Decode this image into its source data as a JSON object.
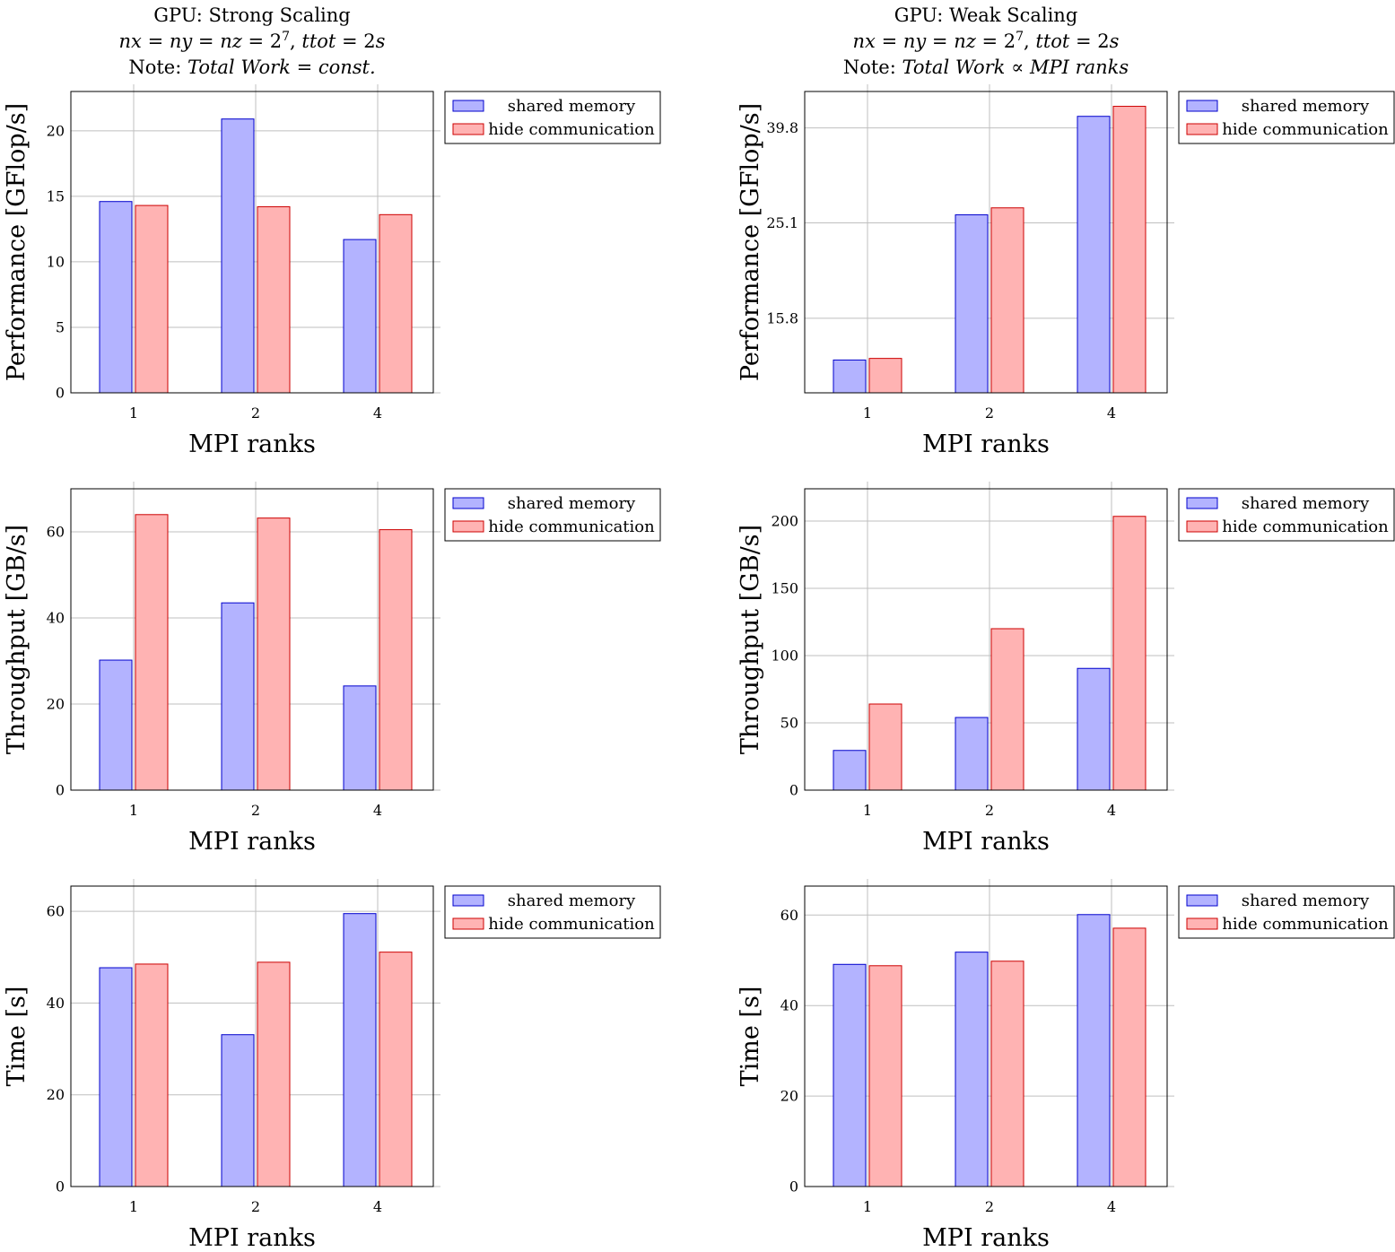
{
  "chart_data": [
    {
      "type": "bar",
      "title": "GPU: Strong Scaling",
      "subtitle": "nx = ny = nz = 2^7, ttot = 2s",
      "title_lines": [
        [
          {
            "t": "GPU: Strong Scaling",
            "it": false
          }
        ],
        [
          {
            "t": "nx",
            "it": true
          },
          {
            "t": " = ",
            "it": false
          },
          {
            "t": "ny",
            "it": true
          },
          {
            "t": " = ",
            "it": false
          },
          {
            "t": "nz",
            "it": true
          },
          {
            "t": " = 2",
            "it": false
          },
          {
            "t": "7",
            "it": false,
            "sup": true
          },
          {
            "t": ", ",
            "it": false
          },
          {
            "t": "ttot",
            "it": true
          },
          {
            "t": " = 2",
            "it": false
          },
          {
            "t": "s",
            "it": true
          }
        ],
        [
          {
            "t": "Note:  ",
            "it": false
          },
          {
            "t": "Total  Work",
            "it": true
          },
          {
            "t": " = ",
            "it": false
          },
          {
            "t": "const.",
            "it": true
          }
        ]
      ],
      "xlabel": "MPI ranks",
      "ylabel": "Performance [GFlop/s]",
      "categories": [
        "1",
        "2",
        "4"
      ],
      "ylim": [
        0,
        23
      ],
      "yticks": [
        0,
        5,
        10,
        15,
        20
      ],
      "ytick_labels": [
        "0",
        "5",
        "10",
        "15",
        "20"
      ],
      "grid": true,
      "legend": "outside-top-right",
      "series": [
        {
          "name": "shared memory",
          "values": [
            14.6,
            20.9,
            11.7
          ]
        },
        {
          "name": "hide communication",
          "values": [
            14.3,
            14.2,
            13.6
          ]
        }
      ]
    },
    {
      "type": "bar",
      "title": "GPU: Weak Scaling",
      "subtitle": "nx = ny = nz = 2^7, ttot = 2s",
      "title_lines": [
        [
          {
            "t": "GPU: Weak Scaling",
            "it": false
          }
        ],
        [
          {
            "t": "nx",
            "it": true
          },
          {
            "t": " = ",
            "it": false
          },
          {
            "t": "ny",
            "it": true
          },
          {
            "t": " = ",
            "it": false
          },
          {
            "t": "nz",
            "it": true
          },
          {
            "t": " = 2",
            "it": false
          },
          {
            "t": "7",
            "it": false,
            "sup": true
          },
          {
            "t": ", ",
            "it": false
          },
          {
            "t": "ttot",
            "it": true
          },
          {
            "t": " = 2",
            "it": false
          },
          {
            "t": "s",
            "it": true
          }
        ],
        [
          {
            "t": "Note:  ",
            "it": false
          },
          {
            "t": "Total  Work",
            "it": true
          },
          {
            "t": " ∝ ",
            "it": false
          },
          {
            "t": "MPI  ranks",
            "it": true
          }
        ]
      ],
      "xlabel": "MPI ranks",
      "ylabel": "Performance [GFlop/s]",
      "categories": [
        "1",
        "2",
        "4"
      ],
      "yscale": "log",
      "ylim": [
        11.0,
        47.5
      ],
      "yticks": [
        15.8,
        25.1,
        39.8
      ],
      "ytick_labels": [
        "15.8",
        "25.1",
        "39.8"
      ],
      "grid": true,
      "legend": "outside-top-right",
      "series": [
        {
          "name": "shared memory",
          "values": [
            12.9,
            26.1,
            42.1
          ]
        },
        {
          "name": "hide communication",
          "values": [
            13.0,
            27.0,
            44.2
          ]
        }
      ]
    },
    {
      "type": "bar",
      "xlabel": "MPI ranks",
      "ylabel": "Throughput [GB/s]",
      "categories": [
        "1",
        "2",
        "4"
      ],
      "ylim": [
        0,
        70
      ],
      "yticks": [
        0,
        20,
        40,
        60
      ],
      "ytick_labels": [
        "0",
        "20",
        "40",
        "60"
      ],
      "grid": true,
      "legend": "outside-top-right",
      "series": [
        {
          "name": "shared memory",
          "values": [
            30.2,
            43.5,
            24.2
          ]
        },
        {
          "name": "hide communication",
          "values": [
            64.0,
            63.2,
            60.5
          ]
        }
      ]
    },
    {
      "type": "bar",
      "xlabel": "MPI ranks",
      "ylabel": "Throughput [GB/s]",
      "categories": [
        "1",
        "2",
        "4"
      ],
      "ylim": [
        0,
        224
      ],
      "yticks": [
        0,
        50,
        100,
        150,
        200
      ],
      "ytick_labels": [
        "0",
        "50",
        "100",
        "150",
        "200"
      ],
      "grid": true,
      "legend": "outside-top-right",
      "series": [
        {
          "name": "shared memory",
          "values": [
            29.5,
            54.0,
            90.5
          ]
        },
        {
          "name": "hide communication",
          "values": [
            64.0,
            120.0,
            203.5
          ]
        }
      ]
    },
    {
      "type": "bar",
      "xlabel": "MPI ranks",
      "ylabel": "Time [s]",
      "categories": [
        "1",
        "2",
        "4"
      ],
      "ylim": [
        0,
        65.5
      ],
      "yticks": [
        0,
        20,
        40,
        60
      ],
      "ytick_labels": [
        "0",
        "20",
        "40",
        "60"
      ],
      "grid": true,
      "legend": "outside-top-right",
      "series": [
        {
          "name": "shared memory",
          "values": [
            47.7,
            33.1,
            59.5
          ]
        },
        {
          "name": "hide communication",
          "values": [
            48.5,
            48.9,
            51.1
          ]
        }
      ]
    },
    {
      "type": "bar",
      "xlabel": "MPI ranks",
      "ylabel": "Time [s]",
      "categories": [
        "1",
        "2",
        "4"
      ],
      "ylim": [
        0,
        66.4
      ],
      "yticks": [
        0,
        20,
        40,
        60
      ],
      "ytick_labels": [
        "0",
        "20",
        "40",
        "60"
      ],
      "grid": true,
      "legend": "outside-top-right",
      "series": [
        {
          "name": "shared memory",
          "values": [
            49.1,
            51.8,
            60.1
          ]
        },
        {
          "name": "hide communication",
          "values": [
            48.8,
            49.8,
            57.1
          ]
        }
      ]
    }
  ],
  "colors": {
    "shared_fill": "#b3b3ff",
    "shared_stroke": "#0000cc",
    "hide_fill": "#ffb3b3",
    "hide_stroke": "#cc0000",
    "grid": "#bfbfbf"
  }
}
